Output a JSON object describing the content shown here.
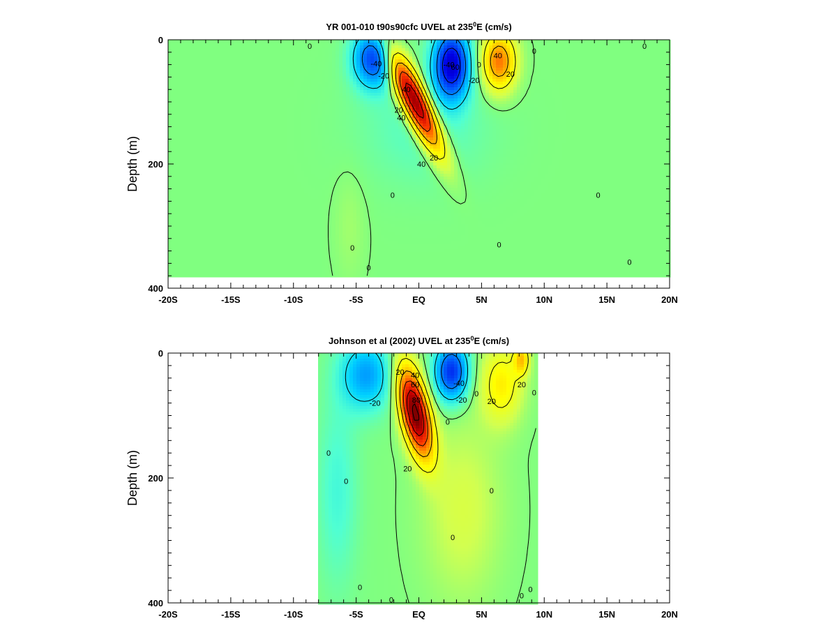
{
  "colors": {
    "background_zero": "#80ff80",
    "strong_westward": "#0000c8",
    "westward": "#00c8ff",
    "eastward": "#ffff00",
    "strong_eastward": "#ff6400",
    "core_eastward": "#800000",
    "contour": "#000000",
    "axis": "#000000"
  },
  "chart_data": [
    {
      "type": "heatmap",
      "id": "model",
      "title_main": "YR 001-010 t90s90cfc UVEL at 235",
      "title_sup": "0",
      "title_tail": "E (cm/s)",
      "ylabel": "Depth (m)",
      "xlim": [
        -20,
        20
      ],
      "ylim": [
        400,
        0
      ],
      "x_ticks": [
        -20,
        -15,
        -10,
        -5,
        0,
        5,
        10,
        15,
        20
      ],
      "x_tick_labels": [
        "-20S",
        "-15S",
        "-10S",
        "-5S",
        "EQ",
        "5N",
        "10N",
        "15N",
        "20N"
      ],
      "y_ticks": [
        0,
        200,
        400
      ],
      "y_tick_labels": [
        "0",
        "200",
        "400"
      ],
      "data_max_depth": 380,
      "features": [
        {
          "name": "eastward undercurrent core",
          "value": 100,
          "lat": -0.3,
          "depth": 100,
          "lat_half_width": 1.1,
          "depth_half_width": 80,
          "tilt": 0.022
        },
        {
          "name": "south equatorial current south",
          "value": -55,
          "lat": -3.6,
          "depth": 30,
          "lat_half_width": 1.6,
          "depth_half_width": 45,
          "tilt": 0
        },
        {
          "name": "south equatorial current north",
          "value": -75,
          "lat": 2.6,
          "depth": 40,
          "lat_half_width": 1.4,
          "depth_half_width": 55,
          "tilt": 0
        },
        {
          "name": "north equatorial countercurrent",
          "value": 55,
          "lat": 6.4,
          "depth": 35,
          "lat_half_width": 1.3,
          "depth_half_width": 45,
          "tilt": 0
        },
        {
          "name": "broad westward flow",
          "value": -9,
          "lat": 0.5,
          "depth": 140,
          "lat_half_width": 5.0,
          "depth_half_width": 90,
          "tilt": 0
        },
        {
          "name": "weak eastward flow south",
          "value": 4,
          "lat": -5.5,
          "depth": 300,
          "lat_half_width": 1.2,
          "depth_half_width": 90,
          "tilt": 0
        }
      ],
      "contour_levels": [
        -60,
        -40,
        -20,
        0,
        20,
        40,
        60,
        80,
        100
      ],
      "contour_labels": [
        {
          "text": "0",
          "lat": -8.7,
          "depth": 10
        },
        {
          "text": "-40",
          "lat": -3.4,
          "depth": 38
        },
        {
          "text": "-20",
          "lat": -2.8,
          "depth": 58
        },
        {
          "text": "40",
          "lat": -1.0,
          "depth": 80
        },
        {
          "text": "20",
          "lat": -1.6,
          "depth": 113
        },
        {
          "text": "40",
          "lat": -1.4,
          "depth": 125
        },
        {
          "text": "40",
          "lat": 0.2,
          "depth": 200
        },
        {
          "text": "20",
          "lat": 1.2,
          "depth": 190
        },
        {
          "text": "-40",
          "lat": 2.4,
          "depth": 40
        },
        {
          "text": "60",
          "lat": 2.9,
          "depth": 44
        },
        {
          "text": "-20",
          "lat": 4.4,
          "depth": 65
        },
        {
          "text": "0",
          "lat": 4.8,
          "depth": 40
        },
        {
          "text": "40",
          "lat": 6.3,
          "depth": 25
        },
        {
          "text": "20",
          "lat": 7.3,
          "depth": 55
        },
        {
          "text": "0",
          "lat": 9.2,
          "depth": 18
        },
        {
          "text": "0",
          "lat": 18.0,
          "depth": 10
        },
        {
          "text": "0",
          "lat": -2.1,
          "depth": 250
        },
        {
          "text": "0",
          "lat": -5.3,
          "depth": 335
        },
        {
          "text": "0",
          "lat": -4.0,
          "depth": 367
        },
        {
          "text": "0",
          "lat": 14.3,
          "depth": 250
        },
        {
          "text": "0",
          "lat": 16.8,
          "depth": 358
        },
        {
          "text": "0",
          "lat": 6.4,
          "depth": 330
        }
      ]
    },
    {
      "type": "heatmap",
      "id": "observed",
      "title_main": "Johnson et al (2002) UVEL at 235",
      "title_sup": "0",
      "title_tail": "E (cm/s)",
      "ylabel": "Depth (m)",
      "xlim": [
        -20,
        20
      ],
      "ylim": [
        400,
        0
      ],
      "x_ticks": [
        -20,
        -15,
        -10,
        -5,
        0,
        5,
        10,
        15,
        20
      ],
      "x_tick_labels": [
        "-20S",
        "-15S",
        "-10S",
        "-5S",
        "EQ",
        "5N",
        "10N",
        "15N",
        "20N"
      ],
      "y_ticks": [
        0,
        200,
        400
      ],
      "y_tick_labels": [
        "0",
        "200",
        "400"
      ],
      "data_lat_range": [
        -8,
        9.5
      ],
      "features": [
        {
          "name": "eastward undercurrent core",
          "value": 105,
          "lat": -0.3,
          "depth": 95,
          "lat_half_width": 1.1,
          "depth_half_width": 70,
          "tilt": 0.01
        },
        {
          "name": "south equatorial current south",
          "value": -35,
          "lat": -4.2,
          "depth": 35,
          "lat_half_width": 2.0,
          "depth_half_width": 55,
          "tilt": 0
        },
        {
          "name": "south equatorial current north",
          "value": -60,
          "lat": 2.6,
          "depth": 30,
          "lat_half_width": 1.3,
          "depth_half_width": 45,
          "tilt": 0
        },
        {
          "name": "north equatorial countercurrent",
          "value": 28,
          "lat": 6.6,
          "depth": 50,
          "lat_half_width": 1.6,
          "depth_half_width": 60,
          "tilt": 0
        },
        {
          "name": "surface jet north",
          "value": 35,
          "lat": 8.2,
          "depth": 10,
          "lat_half_width": 0.6,
          "depth_half_width": 25,
          "tilt": 0
        },
        {
          "name": "weak eastward flow",
          "value": 12,
          "lat": 3.5,
          "depth": 250,
          "lat_half_width": 3.0,
          "depth_half_width": 140,
          "tilt": 0
        },
        {
          "name": "weak westward flow south",
          "value": -12,
          "lat": -6.5,
          "depth": 220,
          "lat_half_width": 1.6,
          "depth_half_width": 150,
          "tilt": 0
        }
      ],
      "contour_levels": [
        -60,
        -40,
        -20,
        0,
        20,
        40,
        60,
        80,
        100
      ],
      "contour_labels": [
        {
          "text": "-20",
          "lat": -3.5,
          "depth": 80
        },
        {
          "text": "20",
          "lat": -1.5,
          "depth": 30
        },
        {
          "text": "40",
          "lat": -0.3,
          "depth": 35
        },
        {
          "text": "60",
          "lat": -0.3,
          "depth": 50
        },
        {
          "text": "80",
          "lat": -0.2,
          "depth": 75
        },
        {
          "text": "20",
          "lat": -0.9,
          "depth": 185
        },
        {
          "text": "-40",
          "lat": 3.2,
          "depth": 48
        },
        {
          "text": "-20",
          "lat": 3.4,
          "depth": 75
        },
        {
          "text": "0",
          "lat": 2.3,
          "depth": 110
        },
        {
          "text": "0",
          "lat": 4.6,
          "depth": 65
        },
        {
          "text": "20",
          "lat": 5.8,
          "depth": 77
        },
        {
          "text": "20",
          "lat": 8.2,
          "depth": 50
        },
        {
          "text": "0",
          "lat": 9.2,
          "depth": 63
        },
        {
          "text": "0",
          "lat": -7.2,
          "depth": 160
        },
        {
          "text": "0",
          "lat": -5.8,
          "depth": 205
        },
        {
          "text": "0",
          "lat": 5.8,
          "depth": 220
        },
        {
          "text": "0",
          "lat": 2.7,
          "depth": 295
        },
        {
          "text": "0",
          "lat": -4.7,
          "depth": 375
        },
        {
          "text": "0",
          "lat": -2.2,
          "depth": 395
        },
        {
          "text": "0",
          "lat": 8.2,
          "depth": 388
        },
        {
          "text": "0",
          "lat": 8.9,
          "depth": 378
        }
      ]
    }
  ]
}
